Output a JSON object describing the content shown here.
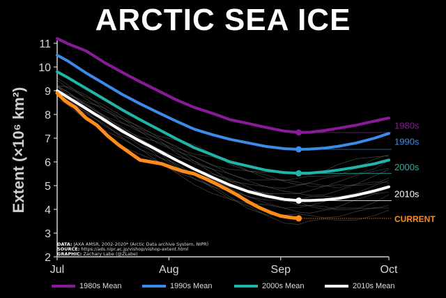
{
  "chart_data": {
    "type": "line",
    "title": "ARCTIC SEA ICE",
    "ylabel": "Extent (×10⁶ km²)",
    "xlabel": "",
    "ylim": [
      2,
      11
    ],
    "y_ticks": [
      2,
      3,
      4,
      5,
      6,
      7,
      8,
      9,
      10,
      11
    ],
    "x_domain": [
      182,
      274
    ],
    "x_ticks": [
      {
        "label": "Jul",
        "day": 182
      },
      {
        "label": "Aug",
        "day": 213
      },
      {
        "label": "Sep",
        "day": 244
      },
      {
        "label": "Oct",
        "day": 274
      }
    ],
    "grid": false,
    "legend_position": "bottom",
    "background": "#000000",
    "series": [
      {
        "name": "1980s Mean",
        "label": "1980s",
        "color": "#8b1a9a",
        "points": [
          [
            182,
            11.2
          ],
          [
            185,
            10.98
          ],
          [
            190,
            10.68
          ],
          [
            195,
            10.2
          ],
          [
            200,
            9.78
          ],
          [
            205,
            9.38
          ],
          [
            210,
            9.0
          ],
          [
            215,
            8.62
          ],
          [
            220,
            8.3
          ],
          [
            225,
            8.05
          ],
          [
            230,
            7.78
          ],
          [
            235,
            7.62
          ],
          [
            240,
            7.45
          ],
          [
            245,
            7.3
          ],
          [
            249,
            7.24
          ],
          [
            252,
            7.25
          ],
          [
            256,
            7.32
          ],
          [
            260,
            7.42
          ],
          [
            265,
            7.55
          ],
          [
            270,
            7.72
          ],
          [
            274,
            7.85
          ]
        ],
        "marker": [
          249,
          7.24
        ]
      },
      {
        "name": "1990s Mean",
        "label": "1990s",
        "color": "#3b8be8",
        "points": [
          [
            182,
            10.5
          ],
          [
            185,
            10.25
          ],
          [
            190,
            9.75
          ],
          [
            195,
            9.3
          ],
          [
            200,
            8.85
          ],
          [
            205,
            8.45
          ],
          [
            210,
            8.08
          ],
          [
            215,
            7.72
          ],
          [
            220,
            7.38
          ],
          [
            225,
            7.15
          ],
          [
            230,
            6.95
          ],
          [
            235,
            6.8
          ],
          [
            240,
            6.65
          ],
          [
            245,
            6.56
          ],
          [
            249,
            6.53
          ],
          [
            252,
            6.54
          ],
          [
            256,
            6.58
          ],
          [
            260,
            6.66
          ],
          [
            265,
            6.8
          ],
          [
            270,
            7.0
          ],
          [
            274,
            7.2
          ]
        ],
        "marker": [
          249,
          6.53
        ]
      },
      {
        "name": "2000s Mean",
        "label": "2000s",
        "color": "#1fb5a8",
        "points": [
          [
            182,
            9.8
          ],
          [
            185,
            9.55
          ],
          [
            190,
            9.1
          ],
          [
            195,
            8.65
          ],
          [
            200,
            8.2
          ],
          [
            205,
            7.78
          ],
          [
            210,
            7.38
          ],
          [
            215,
            6.98
          ],
          [
            220,
            6.6
          ],
          [
            225,
            6.3
          ],
          [
            230,
            6.0
          ],
          [
            235,
            5.82
          ],
          [
            240,
            5.65
          ],
          [
            245,
            5.55
          ],
          [
            249,
            5.52
          ],
          [
            252,
            5.53
          ],
          [
            256,
            5.58
          ],
          [
            260,
            5.66
          ],
          [
            265,
            5.78
          ],
          [
            270,
            5.92
          ],
          [
            274,
            6.08
          ]
        ],
        "marker": [
          249,
          5.52
        ]
      },
      {
        "name": "2010s Mean",
        "label": "2010s",
        "color": "#ffffff",
        "points": [
          [
            182,
            9.0
          ],
          [
            185,
            8.72
          ],
          [
            190,
            8.25
          ],
          [
            195,
            7.78
          ],
          [
            200,
            7.3
          ],
          [
            205,
            6.88
          ],
          [
            210,
            6.48
          ],
          [
            215,
            6.08
          ],
          [
            220,
            5.7
          ],
          [
            225,
            5.35
          ],
          [
            230,
            5.02
          ],
          [
            235,
            4.75
          ],
          [
            240,
            4.56
          ],
          [
            245,
            4.42
          ],
          [
            249,
            4.37
          ],
          [
            252,
            4.37
          ],
          [
            256,
            4.4
          ],
          [
            260,
            4.46
          ],
          [
            265,
            4.6
          ],
          [
            270,
            4.78
          ],
          [
            274,
            4.95
          ]
        ],
        "marker": [
          249,
          4.37
        ]
      },
      {
        "name": "CURRENT",
        "label": "CURRENT",
        "color": "#ff8c1a",
        "points": [
          [
            182,
            8.9
          ],
          [
            184,
            8.6
          ],
          [
            187,
            8.3
          ],
          [
            190,
            7.85
          ],
          [
            193,
            7.55
          ],
          [
            196,
            7.1
          ],
          [
            199,
            6.72
          ],
          [
            202,
            6.4
          ],
          [
            205,
            6.08
          ],
          [
            208,
            6.0
          ],
          [
            211,
            5.92
          ],
          [
            214,
            5.75
          ],
          [
            217,
            5.6
          ],
          [
            220,
            5.5
          ],
          [
            223,
            5.3
          ],
          [
            226,
            5.08
          ],
          [
            229,
            4.85
          ],
          [
            232,
            4.6
          ],
          [
            235,
            4.32
          ],
          [
            238,
            4.08
          ],
          [
            241,
            3.88
          ],
          [
            244,
            3.72
          ],
          [
            247,
            3.65
          ],
          [
            249,
            3.62
          ]
        ],
        "marker": [
          249,
          3.62
        ]
      }
    ],
    "background_years_note": ""
  },
  "credits": {
    "data_key": "DATA:",
    "data_val": "JAXA AMSR, 2002-2020* (Arctic Data archive System, NIPR)",
    "source_key": "SOURCE:",
    "source_val": "https://ads.nipr.ac.jp/vishop/vishop-extent.html",
    "graphic_key": "GRAPHIC:",
    "graphic_val": "Zachary Labe (@ZLabe)"
  },
  "legend": [
    {
      "label": "1980s Mean",
      "color": "#8b1a9a"
    },
    {
      "label": "1990s Mean",
      "color": "#3b8be8"
    },
    {
      "label": "2000s Mean",
      "color": "#1fb5a8"
    },
    {
      "label": "2010s Mean",
      "color": "#ffffff"
    }
  ]
}
